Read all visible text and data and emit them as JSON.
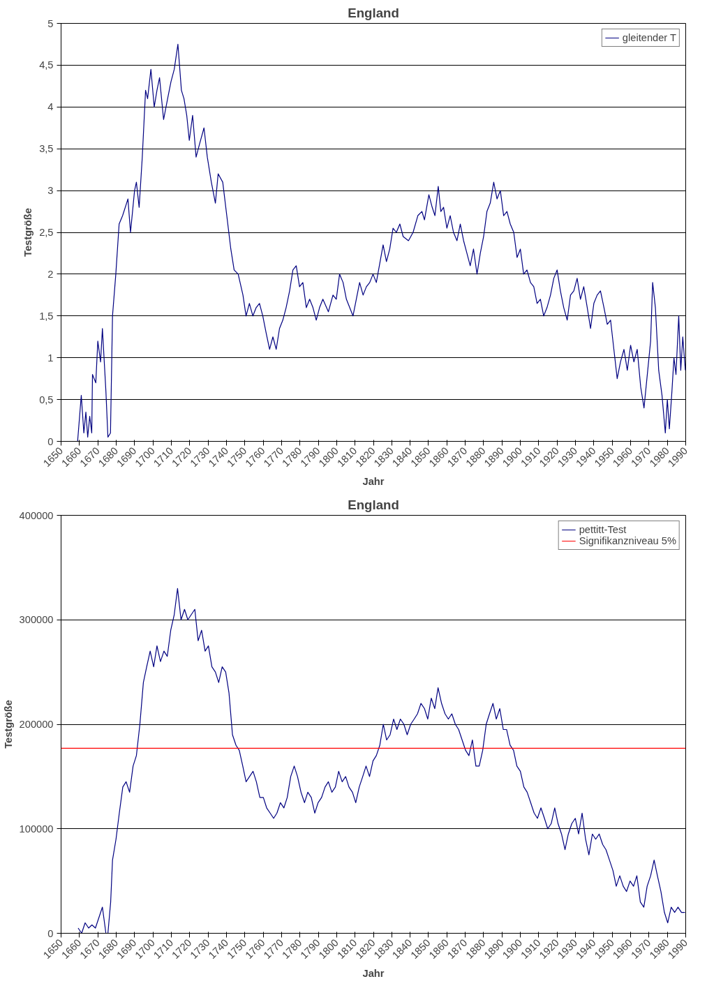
{
  "chart_data": [
    {
      "type": "line",
      "title": "England",
      "xlabel": "Jahr",
      "ylabel": "Testgröße",
      "legend": "top right",
      "grid": "y",
      "marker": "none",
      "line_style": "solid",
      "xlim": [
        1650,
        1990
      ],
      "xticks": [
        1650,
        1660,
        1670,
        1680,
        1690,
        1700,
        1710,
        1720,
        1730,
        1740,
        1750,
        1760,
        1770,
        1780,
        1790,
        1800,
        1810,
        1820,
        1830,
        1840,
        1850,
        1860,
        1870,
        1880,
        1890,
        1900,
        1910,
        1920,
        1930,
        1940,
        1950,
        1960,
        1970,
        1980,
        1990
      ],
      "ylim": [
        0,
        5
      ],
      "yticks": [
        0,
        {
          "value": 0.5,
          "label": "0,5"
        },
        1,
        {
          "value": 1.5,
          "label": "1,5"
        },
        2,
        {
          "value": 2.5,
          "label": "2,5"
        },
        3,
        {
          "value": 3.5,
          "label": "3,5"
        },
        4,
        {
          "value": 4.5,
          "label": "4,5"
        },
        5
      ],
      "series": [
        {
          "name": "gleitender T",
          "color": "#000080",
          "x": [
            1659,
            1661,
            1662.4,
            1663.5,
            1664.5,
            1665.6,
            1666.7,
            1667.1,
            1668.9,
            1670,
            1671.5,
            1672.5,
            1674.4,
            1675.5,
            1676.9,
            1678,
            1679.8,
            1681.6,
            1683.5,
            1686.4,
            1687.8,
            1690,
            1691,
            1692.5,
            1694.2,
            1696,
            1697.1,
            1698.9,
            1700.7,
            1702.2,
            1703.6,
            1705.8,
            1708,
            1709.8,
            1711.6,
            1713.6,
            1715.5,
            1716.9,
            1718.4,
            1719.8,
            1721.6,
            1723.5,
            1725.3,
            1727.8,
            1729.6,
            1731.8,
            1734,
            1735.5,
            1738,
            1740.2,
            1742.4,
            1744.2,
            1746.4,
            1749,
            1750.7,
            1752.5,
            1754.4,
            1756.2,
            1758,
            1759.8,
            1761.6,
            1763.5,
            1765.3,
            1767.1,
            1768.9,
            1770.7,
            1772.5,
            1774.4,
            1776.2,
            1778,
            1779.8,
            1781.6,
            1783.5,
            1785.3,
            1787.1,
            1788.9,
            1790.7,
            1792.5,
            1795.5,
            1798,
            1799.8,
            1801.6,
            1803.5,
            1805.3,
            1807.1,
            1808.9,
            1810.7,
            1812.5,
            1814.4,
            1816.2,
            1818,
            1819.8,
            1821.6,
            1825.3,
            1827.1,
            1828.9,
            1830.7,
            1832.5,
            1834.4,
            1836.2,
            1839.1,
            1841.6,
            1844.2,
            1846.4,
            1847.8,
            1850.2,
            1852,
            1853.5,
            1855.3,
            1856.7,
            1858.2,
            1860,
            1861.8,
            1863.6,
            1865.5,
            1867.3,
            1869.1,
            1870.9,
            1872.7,
            1874.5,
            1876.4,
            1878.2,
            1880,
            1881.8,
            1883.6,
            1885.5,
            1887.3,
            1889.1,
            1890.9,
            1892.7,
            1894.5,
            1896.4,
            1898.2,
            1900,
            1901.8,
            1903.6,
            1905.5,
            1907.3,
            1909.1,
            1910.9,
            1912.7,
            1914.5,
            1916.4,
            1918.2,
            1920,
            1921.8,
            1923.6,
            1925.5,
            1927.3,
            1929.1,
            1930.9,
            1932.7,
            1934.5,
            1936.4,
            1938.2,
            1940,
            1941.8,
            1943.6,
            1945.5,
            1947.3,
            1949.1,
            1950.9,
            1952.7,
            1954.5,
            1956.4,
            1958.2,
            1960,
            1961.8,
            1963.6,
            1965.5,
            1967.3,
            1969.1,
            1970.9,
            1972,
            1973.5,
            1975.3,
            1977.1,
            1978.9,
            1980,
            1981.1,
            1982.5,
            1983.6,
            1984.7,
            1986.2,
            1987.3,
            1988.4,
            1989.8
          ],
          "values": [
            0,
            0.55,
            0.1,
            0.35,
            0.05,
            0.3,
            0.1,
            0.8,
            0.7,
            1.2,
            0.95,
            1.35,
            0.6,
            0.05,
            0.1,
            1.5,
            2.0,
            2.6,
            2.7,
            2.9,
            2.5,
            3.0,
            3.1,
            2.8,
            3.4,
            4.2,
            4.1,
            4.45,
            4.0,
            4.2,
            4.35,
            3.85,
            4.1,
            4.3,
            4.45,
            4.75,
            4.2,
            4.1,
            3.9,
            3.6,
            3.9,
            3.4,
            3.55,
            3.75,
            3.4,
            3.1,
            2.85,
            3.2,
            3.1,
            2.7,
            2.3,
            2.05,
            2.0,
            1.75,
            1.5,
            1.65,
            1.5,
            1.6,
            1.65,
            1.5,
            1.3,
            1.1,
            1.25,
            1.1,
            1.35,
            1.45,
            1.6,
            1.8,
            2.05,
            2.1,
            1.85,
            1.9,
            1.6,
            1.7,
            1.6,
            1.45,
            1.6,
            1.7,
            1.55,
            1.75,
            1.7,
            2.0,
            1.9,
            1.7,
            1.6,
            1.5,
            1.7,
            1.9,
            1.75,
            1.85,
            1.9,
            2.0,
            1.9,
            2.35,
            2.15,
            2.3,
            2.55,
            2.5,
            2.6,
            2.45,
            2.4,
            2.5,
            2.7,
            2.75,
            2.65,
            2.95,
            2.8,
            2.7,
            3.05,
            2.75,
            2.8,
            2.55,
            2.7,
            2.5,
            2.4,
            2.6,
            2.4,
            2.25,
            2.1,
            2.3,
            2.0,
            2.25,
            2.45,
            2.75,
            2.85,
            3.1,
            2.9,
            3.0,
            2.7,
            2.75,
            2.6,
            2.5,
            2.2,
            2.3,
            2.0,
            2.05,
            1.9,
            1.85,
            1.65,
            1.7,
            1.5,
            1.6,
            1.75,
            1.95,
            2.05,
            1.8,
            1.6,
            1.45,
            1.75,
            1.8,
            1.95,
            1.7,
            1.85,
            1.6,
            1.35,
            1.65,
            1.75,
            1.8,
            1.6,
            1.4,
            1.45,
            1.1,
            0.75,
            0.95,
            1.1,
            0.85,
            1.15,
            0.95,
            1.1,
            0.65,
            0.4,
            0.8,
            1.2,
            1.9,
            1.6,
            0.85,
            0.55,
            0.1,
            0.5,
            0.15,
            0.6,
            1.0,
            0.8,
            1.5,
            0.85,
            1.25,
            0.85
          ]
        }
      ]
    },
    {
      "type": "line",
      "title": "England",
      "xlabel": "Jahr",
      "ylabel": "Testgröße",
      "legend": "top right",
      "grid": "y",
      "marker": "none",
      "line_style": "solid",
      "xlim": [
        1650,
        1990
      ],
      "xticks": [
        1650,
        1660,
        1670,
        1680,
        1690,
        1700,
        1710,
        1720,
        1730,
        1740,
        1750,
        1760,
        1770,
        1780,
        1790,
        1800,
        1810,
        1820,
        1830,
        1840,
        1850,
        1860,
        1870,
        1880,
        1890,
        1900,
        1910,
        1920,
        1930,
        1940,
        1950,
        1960,
        1970,
        1980,
        1990
      ],
      "ylim": [
        0,
        400000
      ],
      "yticks": [
        0,
        100000,
        200000,
        300000,
        400000
      ],
      "series": [
        {
          "name": "pettitt-Test",
          "color": "#000080",
          "x": [
            1659.3,
            1661.2,
            1663.1,
            1665,
            1666.8,
            1668.7,
            1670.6,
            1672.5,
            1674.4,
            1675.5,
            1677,
            1678,
            1679.9,
            1681.7,
            1683.6,
            1685.4,
            1687.3,
            1689.2,
            1691.0,
            1692.9,
            1694.8,
            1696.6,
            1698.5,
            1700.4,
            1702.2,
            1704.1,
            1706.0,
            1707.8,
            1709.7,
            1711.6,
            1713.4,
            1715.3,
            1717.2,
            1719.0,
            1720.9,
            1722.8,
            1724.6,
            1726.5,
            1728.4,
            1730.2,
            1732.1,
            1734.0,
            1735.8,
            1737.7,
            1739.6,
            1741.4,
            1743.3,
            1745.2,
            1747.0,
            1748.9,
            1750.7,
            1752.6,
            1754.5,
            1756.3,
            1758.2,
            1760.1,
            1761.9,
            1763.8,
            1765.7,
            1767.5,
            1769.4,
            1771.3,
            1773.1,
            1775.0,
            1776.9,
            1778.7,
            1780.6,
            1782.5,
            1784.3,
            1786.2,
            1788.1,
            1789.9,
            1791.8,
            1793.7,
            1795.5,
            1797.4,
            1799.3,
            1801.1,
            1803.0,
            1804.9,
            1806.7,
            1808.6,
            1810.4,
            1812.3,
            1814.2,
            1816.0,
            1817.9,
            1819.8,
            1821.6,
            1823.5,
            1825.4,
            1827.2,
            1829.1,
            1831.0,
            1832.8,
            1834.7,
            1836.6,
            1838.4,
            1840.3,
            1842.2,
            1844.0,
            1845.9,
            1847.8,
            1849.6,
            1851.5,
            1853.4,
            1855.2,
            1857.1,
            1859.0,
            1860.8,
            1862.7,
            1864.6,
            1866.4,
            1868.3,
            1870.2,
            1872.0,
            1873.9,
            1875.8,
            1877.6,
            1879.5,
            1881.4,
            1883.2,
            1885.1,
            1886.9,
            1888.8,
            1890.7,
            1892.5,
            1894.4,
            1896.3,
            1898.1,
            1900.0,
            1901.9,
            1903.7,
            1905.6,
            1907.5,
            1909.3,
            1911.2,
            1913.1,
            1914.9,
            1916.8,
            1918.7,
            1920.5,
            1922.4,
            1924.3,
            1926.1,
            1928.0,
            1929.9,
            1931.7,
            1933.6,
            1935.5,
            1937.3,
            1939.2,
            1941.0,
            1942.9,
            1944.8,
            1946.6,
            1948.5,
            1950.4,
            1952.2,
            1954.1,
            1956.0,
            1957.8,
            1959.7,
            1961.6,
            1963.4,
            1965.3,
            1967.2,
            1969.0,
            1970.9,
            1972.8,
            1974.6,
            1976.5,
            1978.4,
            1980.2,
            1982.1,
            1984.0,
            1985.8,
            1987.7,
            1989.6
          ],
          "values": [
            5000,
            0,
            10000,
            5000,
            8000,
            5000,
            15000,
            25000,
            0,
            0,
            30000,
            70000,
            90000,
            115000,
            140000,
            145000,
            135000,
            160000,
            170000,
            200000,
            240000,
            255000,
            270000,
            255000,
            275000,
            260000,
            270000,
            265000,
            290000,
            305000,
            330000,
            300000,
            310000,
            300000,
            305000,
            310000,
            280000,
            290000,
            270000,
            275000,
            255000,
            250000,
            240000,
            255000,
            250000,
            230000,
            190000,
            180000,
            175000,
            160000,
            145000,
            150000,
            155000,
            145000,
            130000,
            130000,
            120000,
            115000,
            110000,
            115000,
            125000,
            120000,
            130000,
            150000,
            160000,
            150000,
            135000,
            125000,
            135000,
            130000,
            115000,
            125000,
            130000,
            140000,
            145000,
            135000,
            140000,
            155000,
            145000,
            150000,
            140000,
            135000,
            125000,
            140000,
            150000,
            160000,
            150000,
            165000,
            170000,
            180000,
            200000,
            185000,
            190000,
            205000,
            195000,
            205000,
            200000,
            190000,
            200000,
            205000,
            210000,
            220000,
            215000,
            205000,
            225000,
            215000,
            235000,
            220000,
            210000,
            205000,
            210000,
            200000,
            195000,
            185000,
            175000,
            170000,
            185000,
            160000,
            160000,
            175000,
            200000,
            210000,
            220000,
            205000,
            215000,
            195000,
            195000,
            180000,
            175000,
            160000,
            155000,
            140000,
            135000,
            125000,
            115000,
            110000,
            120000,
            110000,
            100000,
            105000,
            120000,
            105000,
            95000,
            80000,
            95000,
            105000,
            110000,
            95000,
            115000,
            90000,
            75000,
            95000,
            90000,
            95000,
            85000,
            80000,
            70000,
            60000,
            45000,
            55000,
            45000,
            40000,
            50000,
            45000,
            55000,
            30000,
            25000,
            45000,
            55000,
            70000,
            55000,
            40000,
            20000,
            10000,
            25000,
            20000,
            25000,
            20000,
            20000
          ]
        }
      ],
      "ref_lines": [
        {
          "axis": "y",
          "value": 177000,
          "label": "Signifikanzniveau 5%",
          "color": "#ff0000",
          "line_style": "solid"
        }
      ]
    }
  ]
}
